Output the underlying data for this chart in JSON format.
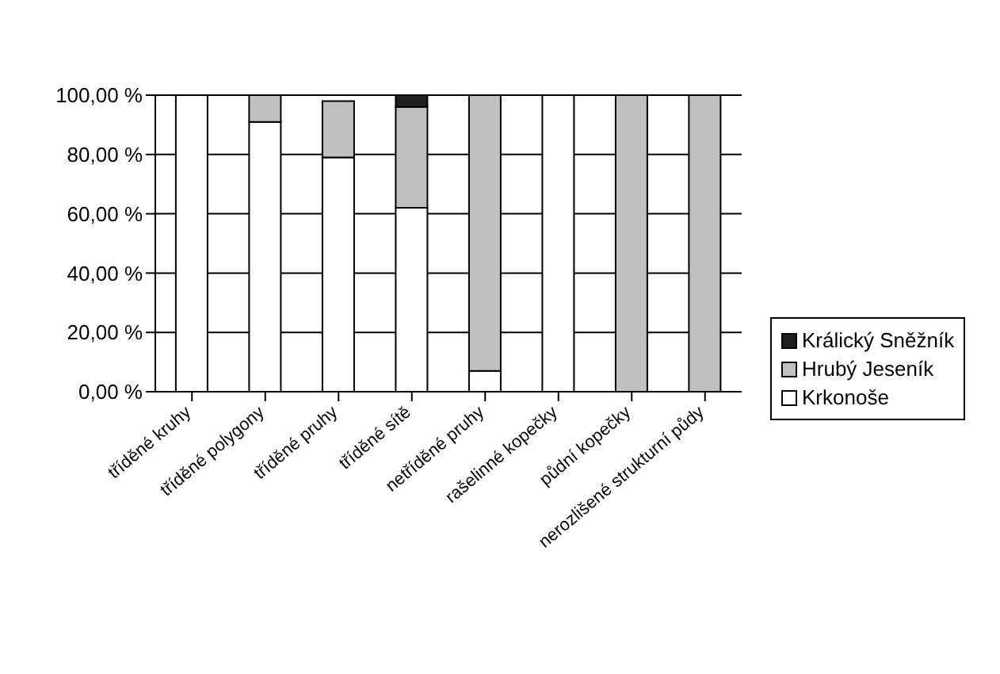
{
  "chart_data": {
    "type": "bar",
    "stacked": true,
    "categories": [
      "tříděné kruhy",
      "tříděné polygony",
      "tříděné pruhy",
      "tříděné sítě",
      "netříděné pruhy",
      "rašelinné kopečky",
      "půdní kopečky",
      "nerozlišené strukturní půdy"
    ],
    "series": [
      {
        "name": "Krkonoše",
        "color": "#ffffff",
        "values": [
          100,
          91,
          79,
          62,
          7,
          100,
          0,
          0
        ]
      },
      {
        "name": "Hrubý Jeseník",
        "color": "#c0c0c0",
        "values": [
          0,
          9,
          19,
          34,
          93,
          0,
          100,
          100
        ]
      },
      {
        "name": "Králický Sněžník",
        "color": "#202020",
        "values": [
          0,
          0,
          0,
          4,
          0,
          0,
          0,
          0
        ]
      }
    ],
    "ylim": [
      0,
      100
    ],
    "yticks": [
      {
        "value": 0,
        "label": "0,00 %"
      },
      {
        "value": 20,
        "label": "20,00 %"
      },
      {
        "value": 40,
        "label": "40,00 %"
      },
      {
        "value": 60,
        "label": "60,00 %"
      },
      {
        "value": 80,
        "label": "80,00 %"
      },
      {
        "value": 100,
        "label": "100,00 %"
      }
    ],
    "grid": "y",
    "legend": "right"
  }
}
